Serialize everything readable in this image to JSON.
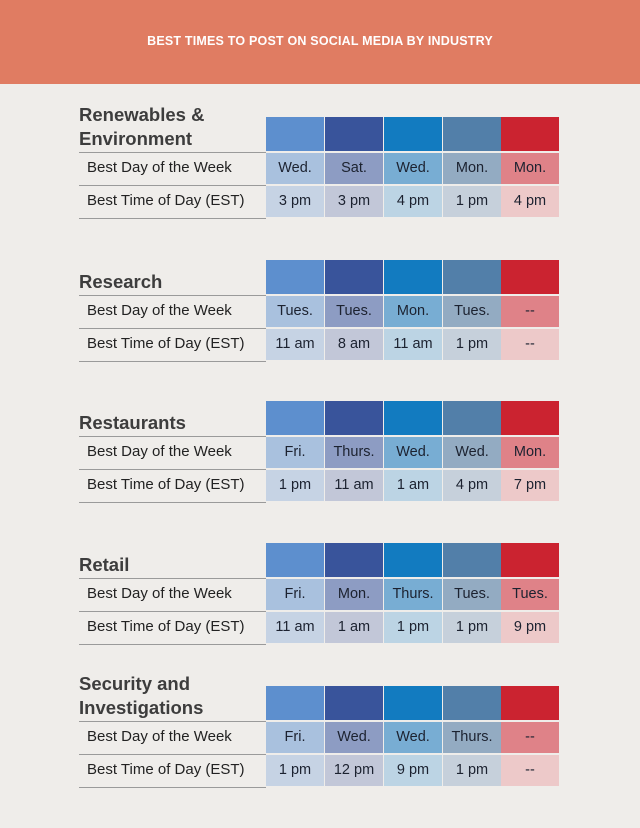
{
  "header": {
    "title": "BEST TIMES TO POST ON SOCIAL MEDIA BY INDUSTRY"
  },
  "colors": {
    "banner": "#e07c62",
    "background": "#efedea",
    "column_headers": [
      "#5d8fce",
      "#39549b",
      "#127bc0",
      "#527fa9",
      "#cb2330"
    ],
    "day_row": [
      "#a9c1de",
      "#8d9cc3",
      "#78add3",
      "#93abc2",
      "#df8288"
    ],
    "time_row": [
      "#c6d3e4",
      "#c2c7d8",
      "#bcd4e4",
      "#c6d0db",
      "#edc9c9"
    ]
  },
  "sections": [
    {
      "industry": "Renewables & Environment",
      "rows": [
        {
          "label": "Best Day of the Week",
          "values": [
            "Wed.",
            "Sat.",
            "Wed.",
            "Mon.",
            "Mon."
          ]
        },
        {
          "label": "Best Time of Day (EST)",
          "values": [
            "3 pm",
            "3 pm",
            "4 pm",
            "1 pm",
            "4 pm"
          ]
        }
      ]
    },
    {
      "industry": "Research",
      "rows": [
        {
          "label": "Best Day of the Week",
          "values": [
            "Tues.",
            "Tues.",
            "Mon.",
            "Tues.",
            "--"
          ]
        },
        {
          "label": "Best Time of Day (EST)",
          "values": [
            "11 am",
            "8 am",
            "11 am",
            "1 pm",
            "--"
          ]
        }
      ]
    },
    {
      "industry": "Restaurants",
      "rows": [
        {
          "label": "Best Day of the Week",
          "values": [
            "Fri.",
            "Thurs.",
            "Wed.",
            "Wed.",
            "Mon."
          ]
        },
        {
          "label": "Best Time of Day (EST)",
          "values": [
            "1 pm",
            "11 am",
            "1 am",
            "4 pm",
            "7 pm"
          ]
        }
      ]
    },
    {
      "industry": "Retail",
      "rows": [
        {
          "label": "Best Day of the Week",
          "values": [
            "Fri.",
            "Mon.",
            "Thurs.",
            "Tues.",
            "Tues."
          ]
        },
        {
          "label": "Best Time of Day (EST)",
          "values": [
            "11 am",
            "1 am",
            "1 pm",
            "1 pm",
            "9 pm"
          ]
        }
      ]
    },
    {
      "industry": "Security and Investigations",
      "rows": [
        {
          "label": "Best Day of the Week",
          "values": [
            "Fri.",
            "Wed.",
            "Wed.",
            "Thurs.",
            "--"
          ]
        },
        {
          "label": "Best Time of Day (EST)",
          "values": [
            "1 pm",
            "12 pm",
            "9 pm",
            "1 pm",
            "--"
          ]
        }
      ]
    }
  ]
}
